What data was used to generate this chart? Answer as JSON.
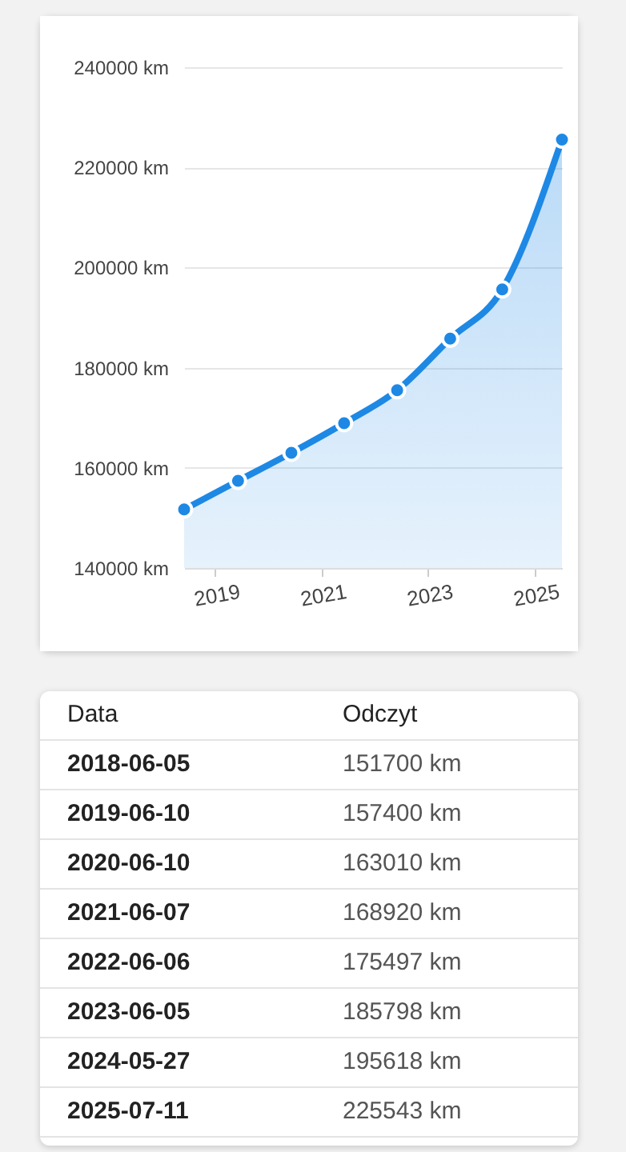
{
  "chart_data": [
    {
      "type": "area",
      "x": [
        "2018-06-05",
        "2019-06-10",
        "2020-06-10",
        "2021-06-07",
        "2022-06-06",
        "2023-06-05",
        "2024-05-27",
        "2025-07-11"
      ],
      "series": [
        {
          "color": "#1e88e5",
          "values": [
            151700,
            157400,
            163010,
            168920,
            175497,
            185798,
            195618,
            225543
          ]
        }
      ],
      "xlim": [
        "2018-06-05",
        "2025-07-11"
      ],
      "xticks": [
        {
          "value": "2019",
          "label": "2019"
        },
        {
          "value": "2021",
          "label": "2021"
        },
        {
          "value": "2023",
          "label": "2023"
        },
        {
          "value": "2025",
          "label": "2025"
        }
      ],
      "ylim": [
        140000,
        240000
      ],
      "yticks": [
        {
          "value": 140000,
          "label": "140000 km"
        },
        {
          "value": 160000,
          "label": "160000 km"
        },
        {
          "value": 180000,
          "label": "180000 km"
        },
        {
          "value": 200000,
          "label": "200000 km"
        },
        {
          "value": 220000,
          "label": "220000 km"
        },
        {
          "value": 240000,
          "label": "240000 km"
        }
      ],
      "grid": "y",
      "marker": "circle"
    },
    {
      "type": "other",
      "annotations": [
        "Data",
        "Odczyt",
        "2018-06-05",
        "151700 km",
        "2019-06-10",
        "157400 km",
        "2020-06-10",
        "163010 km",
        "2021-06-07",
        "168920 km",
        "2022-06-06",
        "175497 km",
        "2023-06-05",
        "185798 km",
        "2024-05-27",
        "195618 km",
        "2025-07-11",
        "225543 km"
      ]
    }
  ]
}
